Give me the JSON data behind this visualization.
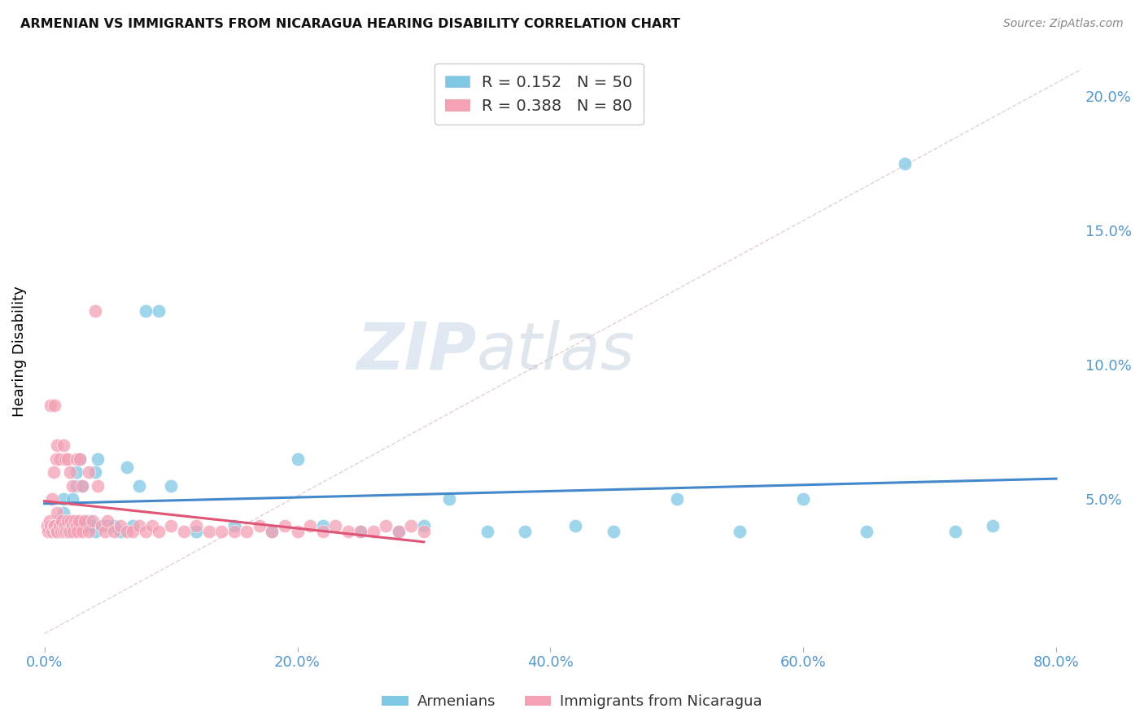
{
  "title": "ARMENIAN VS IMMIGRANTS FROM NICARAGUA HEARING DISABILITY CORRELATION CHART",
  "source": "Source: ZipAtlas.com",
  "xlabel_ticks": [
    "0.0%",
    "20.0%",
    "40.0%",
    "60.0%",
    "80.0%"
  ],
  "xlabel_vals": [
    0.0,
    0.2,
    0.4,
    0.6,
    0.8
  ],
  "ylabel_left": "Hearing Disability",
  "ylabel_right_ticks": [
    "20.0%",
    "15.0%",
    "10.0%",
    "5.0%"
  ],
  "ylabel_right_vals": [
    0.2,
    0.15,
    0.1,
    0.05
  ],
  "ylim": [
    -0.005,
    0.215
  ],
  "xlim": [
    -0.005,
    0.82
  ],
  "legend_blue_R": "0.152",
  "legend_blue_N": "50",
  "legend_pink_R": "0.388",
  "legend_pink_N": "80",
  "legend_label_blue": "Armenians",
  "legend_label_pink": "Immigrants from Nicaragua",
  "blue_color": "#7ec8e3",
  "pink_color": "#f4a0b5",
  "trendline_blue_color": "#4488cc",
  "trendline_pink_color": "#e05575",
  "watermark_color": "#c8d8e8",
  "blue_x": [
    0.005,
    0.01,
    0.012,
    0.015,
    0.015,
    0.018,
    0.02,
    0.022,
    0.022,
    0.025,
    0.025,
    0.028,
    0.03,
    0.03,
    0.032,
    0.035,
    0.038,
    0.04,
    0.04,
    0.042,
    0.045,
    0.05,
    0.055,
    0.06,
    0.065,
    0.07,
    0.075,
    0.08,
    0.09,
    0.1,
    0.12,
    0.15,
    0.18,
    0.2,
    0.22,
    0.25,
    0.28,
    0.3,
    0.32,
    0.35,
    0.38,
    0.42,
    0.45,
    0.5,
    0.55,
    0.6,
    0.65,
    0.68,
    0.72,
    0.75
  ],
  "blue_y": [
    0.04,
    0.042,
    0.038,
    0.045,
    0.05,
    0.04,
    0.04,
    0.042,
    0.05,
    0.055,
    0.06,
    0.065,
    0.055,
    0.04,
    0.04,
    0.042,
    0.04,
    0.06,
    0.038,
    0.065,
    0.04,
    0.04,
    0.04,
    0.038,
    0.062,
    0.04,
    0.055,
    0.12,
    0.12,
    0.055,
    0.038,
    0.04,
    0.038,
    0.065,
    0.04,
    0.038,
    0.038,
    0.04,
    0.05,
    0.038,
    0.038,
    0.04,
    0.038,
    0.05,
    0.038,
    0.05,
    0.038,
    0.175,
    0.038,
    0.04
  ],
  "pink_x": [
    0.002,
    0.003,
    0.004,
    0.005,
    0.005,
    0.006,
    0.006,
    0.007,
    0.007,
    0.008,
    0.008,
    0.009,
    0.009,
    0.01,
    0.01,
    0.01,
    0.012,
    0.012,
    0.013,
    0.014,
    0.015,
    0.015,
    0.016,
    0.016,
    0.017,
    0.018,
    0.018,
    0.019,
    0.02,
    0.02,
    0.021,
    0.022,
    0.022,
    0.023,
    0.024,
    0.025,
    0.025,
    0.026,
    0.027,
    0.028,
    0.03,
    0.03,
    0.032,
    0.035,
    0.035,
    0.038,
    0.04,
    0.042,
    0.045,
    0.048,
    0.05,
    0.055,
    0.06,
    0.065,
    0.07,
    0.075,
    0.08,
    0.085,
    0.09,
    0.1,
    0.11,
    0.12,
    0.13,
    0.14,
    0.15,
    0.16,
    0.17,
    0.18,
    0.19,
    0.2,
    0.21,
    0.22,
    0.23,
    0.24,
    0.25,
    0.26,
    0.27,
    0.28,
    0.29,
    0.3
  ],
  "pink_y": [
    0.04,
    0.038,
    0.042,
    0.085,
    0.04,
    0.05,
    0.038,
    0.06,
    0.04,
    0.085,
    0.04,
    0.065,
    0.038,
    0.07,
    0.045,
    0.038,
    0.065,
    0.04,
    0.038,
    0.042,
    0.07,
    0.038,
    0.065,
    0.04,
    0.038,
    0.065,
    0.042,
    0.038,
    0.06,
    0.038,
    0.042,
    0.055,
    0.04,
    0.038,
    0.042,
    0.065,
    0.04,
    0.038,
    0.042,
    0.065,
    0.055,
    0.038,
    0.042,
    0.06,
    0.038,
    0.042,
    0.12,
    0.055,
    0.04,
    0.038,
    0.042,
    0.038,
    0.04,
    0.038,
    0.038,
    0.04,
    0.038,
    0.04,
    0.038,
    0.04,
    0.038,
    0.04,
    0.038,
    0.038,
    0.038,
    0.038,
    0.04,
    0.038,
    0.04,
    0.038,
    0.04,
    0.038,
    0.04,
    0.038,
    0.038,
    0.038,
    0.04,
    0.038,
    0.04,
    0.038
  ]
}
